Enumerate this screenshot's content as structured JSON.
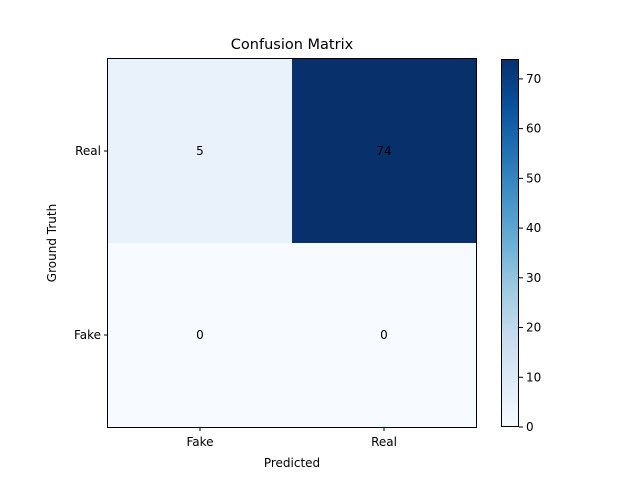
{
  "chart_data": {
    "type": "heatmap",
    "title": "Confusion Matrix",
    "xlabel": "Predicted",
    "ylabel": "Ground Truth",
    "x_categories": [
      "Fake",
      "Real"
    ],
    "y_categories": [
      "Real",
      "Fake"
    ],
    "values": [
      [
        5,
        74
      ],
      [
        0,
        0
      ]
    ],
    "colorbar": {
      "range": [
        0,
        74
      ],
      "ticks": [
        0,
        10,
        20,
        30,
        40,
        50,
        60,
        70
      ]
    },
    "colormap": [
      "#f7fbff",
      "#deebf7",
      "#c6dbef",
      "#9ecae1",
      "#6baed6",
      "#4292c6",
      "#2171b5",
      "#08519c",
      "#08306b"
    ],
    "grid": false,
    "legend": "colorbar-right"
  }
}
